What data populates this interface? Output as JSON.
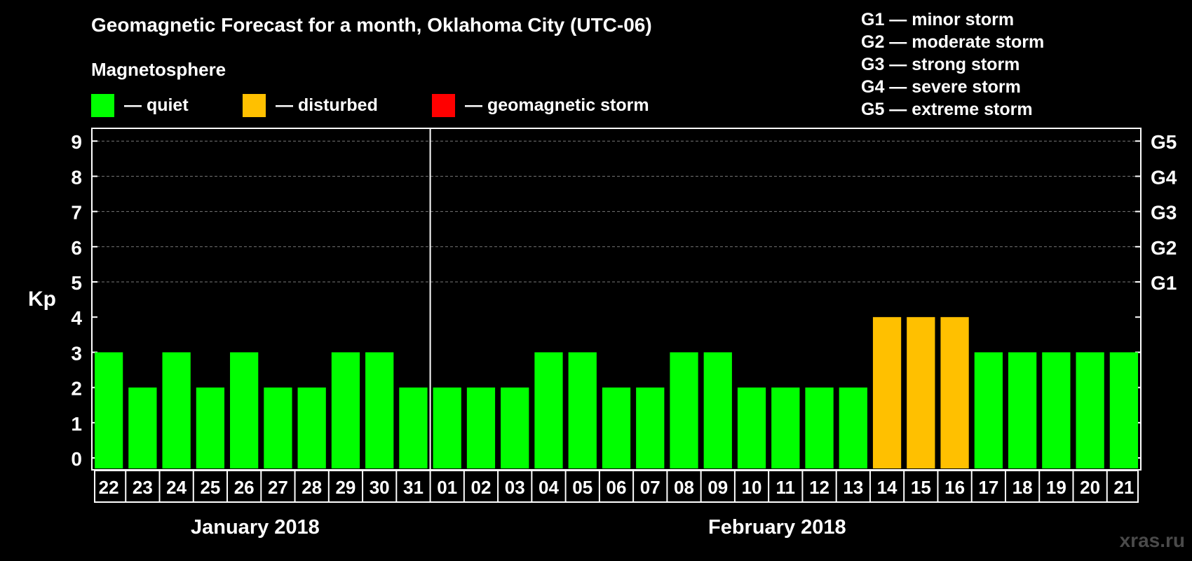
{
  "header": {
    "title": "Geomagnetic Forecast for a month, Oklahoma City (UTC-06)",
    "subtitle": "Magnetosphere"
  },
  "legend": [
    {
      "label": "— quiet",
      "color": "#00ff00"
    },
    {
      "label": "— disturbed",
      "color": "#ffc000"
    },
    {
      "label": "— geomagnetic storm",
      "color": "#ff0000"
    }
  ],
  "g_scale": [
    "G1 — minor storm",
    "G2 — moderate storm",
    "G3 — strong storm",
    "G4 — severe storm",
    "G5 — extreme storm"
  ],
  "months": [
    "January 2018",
    "February 2018"
  ],
  "watermark": "xras.ru",
  "chart_data": {
    "type": "bar",
    "ylabel": "Kp",
    "ylim": [
      0,
      9
    ],
    "yticks": [
      0,
      1,
      2,
      3,
      4,
      5,
      6,
      7,
      8,
      9
    ],
    "right_axis_labels": {
      "5": "G1",
      "6": "G2",
      "7": "G3",
      "8": "G4",
      "9": "G5"
    },
    "grid": "dashed at Kp 5-9",
    "categories": [
      "22",
      "23",
      "24",
      "25",
      "26",
      "27",
      "28",
      "29",
      "30",
      "31",
      "01",
      "02",
      "03",
      "04",
      "05",
      "06",
      "07",
      "08",
      "09",
      "10",
      "11",
      "12",
      "13",
      "14",
      "15",
      "16",
      "17",
      "18",
      "19",
      "20",
      "21"
    ],
    "values": [
      3,
      2,
      3,
      2,
      3,
      2,
      2,
      3,
      3,
      2,
      2,
      2,
      2,
      3,
      3,
      2,
      2,
      3,
      3,
      2,
      2,
      2,
      2,
      4,
      4,
      4,
      3,
      3,
      3,
      3,
      3
    ],
    "bar_status": [
      "quiet",
      "quiet",
      "quiet",
      "quiet",
      "quiet",
      "quiet",
      "quiet",
      "quiet",
      "quiet",
      "quiet",
      "quiet",
      "quiet",
      "quiet",
      "quiet",
      "quiet",
      "quiet",
      "quiet",
      "quiet",
      "quiet",
      "quiet",
      "quiet",
      "quiet",
      "quiet",
      "disturbed",
      "disturbed",
      "disturbed",
      "quiet",
      "quiet",
      "quiet",
      "quiet",
      "quiet"
    ],
    "colors": {
      "quiet": "#00ff00",
      "disturbed": "#ffc000",
      "storm": "#ff0000"
    },
    "month_split_after_index": 9
  }
}
